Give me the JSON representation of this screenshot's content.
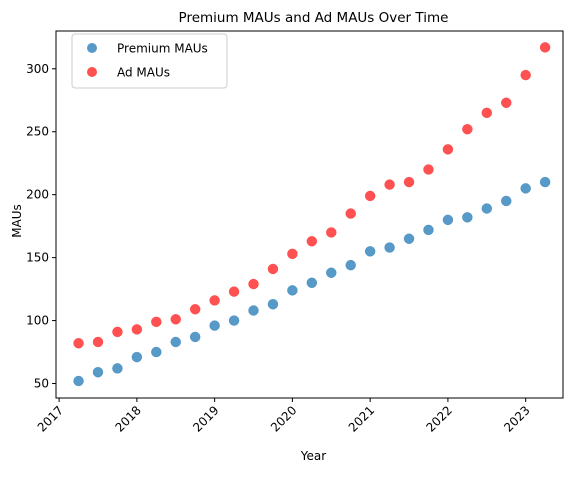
{
  "chart_data": {
    "type": "scatter",
    "title": "Premium MAUs and Ad MAUs Over Time",
    "xlabel": "Year",
    "ylabel": "MAUs",
    "xlim": [
      2016.96,
      2023.48
    ],
    "ylim": [
      38.5,
      330
    ],
    "x_ticks": [
      2017,
      2018,
      2019,
      2020,
      2021,
      2022,
      2023
    ],
    "x_tick_labels": [
      "2017",
      "2018",
      "2019",
      "2020",
      "2021",
      "2022",
      "2023"
    ],
    "y_ticks": [
      50,
      100,
      150,
      200,
      250,
      300
    ],
    "y_tick_labels": [
      "50",
      "100",
      "150",
      "200",
      "250",
      "300"
    ],
    "grid": false,
    "legend_position": "top-left",
    "x": [
      2017.25,
      2017.5,
      2017.75,
      2018.0,
      2018.25,
      2018.5,
      2018.75,
      2019.0,
      2019.25,
      2019.5,
      2019.75,
      2020.0,
      2020.25,
      2020.5,
      2020.75,
      2021.0,
      2021.25,
      2021.5,
      2021.75,
      2022.0,
      2022.25,
      2022.5,
      2022.75,
      2023.0,
      2023.25
    ],
    "series": [
      {
        "name": "Premium MAUs",
        "color": "#1f77b4",
        "values": [
          52,
          59,
          62,
          71,
          75,
          83,
          87,
          96,
          100,
          108,
          113,
          124,
          130,
          138,
          144,
          155,
          158,
          165,
          172,
          180,
          182,
          189,
          195,
          205,
          210
        ]
      },
      {
        "name": "Ad MAUs",
        "color": "#ff2020",
        "values": [
          82,
          83,
          91,
          93,
          99,
          101,
          109,
          116,
          123,
          129,
          141,
          153,
          163,
          170,
          185,
          199,
          208,
          210,
          220,
          236,
          252,
          265,
          273,
          295,
          317
        ]
      }
    ]
  }
}
